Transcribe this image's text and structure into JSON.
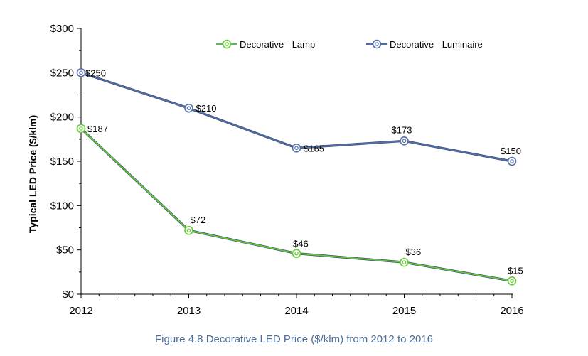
{
  "caption": "Figure 4.8 Decorative LED Price ($/klm) from 2012 to 2016",
  "chart_data": {
    "type": "line",
    "x": [
      "2012",
      "2013",
      "2014",
      "2015",
      "2016"
    ],
    "ylabel": "Typical LED Price ($/klm)",
    "ylim": [
      0,
      300
    ],
    "yticks": [
      0,
      50,
      100,
      150,
      200,
      250,
      300
    ],
    "ytick_labels": [
      "$0",
      "$50",
      "$100",
      "$150",
      "$200",
      "$250",
      "$300"
    ],
    "grid": false,
    "legend_position": "top",
    "series": [
      {
        "name": "Decorative - Lamp",
        "values": [
          187,
          72,
          46,
          36,
          15
        ],
        "labels": [
          "$187",
          "$72",
          "$46",
          "$36",
          "$15"
        ],
        "color": "#66cc33"
      },
      {
        "name": "Decorative - Luminaire",
        "values": [
          250,
          210,
          165,
          173,
          150
        ],
        "labels": [
          "$250",
          "$210",
          "$165",
          "$173",
          "$150"
        ],
        "color": "#5470a8"
      }
    ]
  }
}
